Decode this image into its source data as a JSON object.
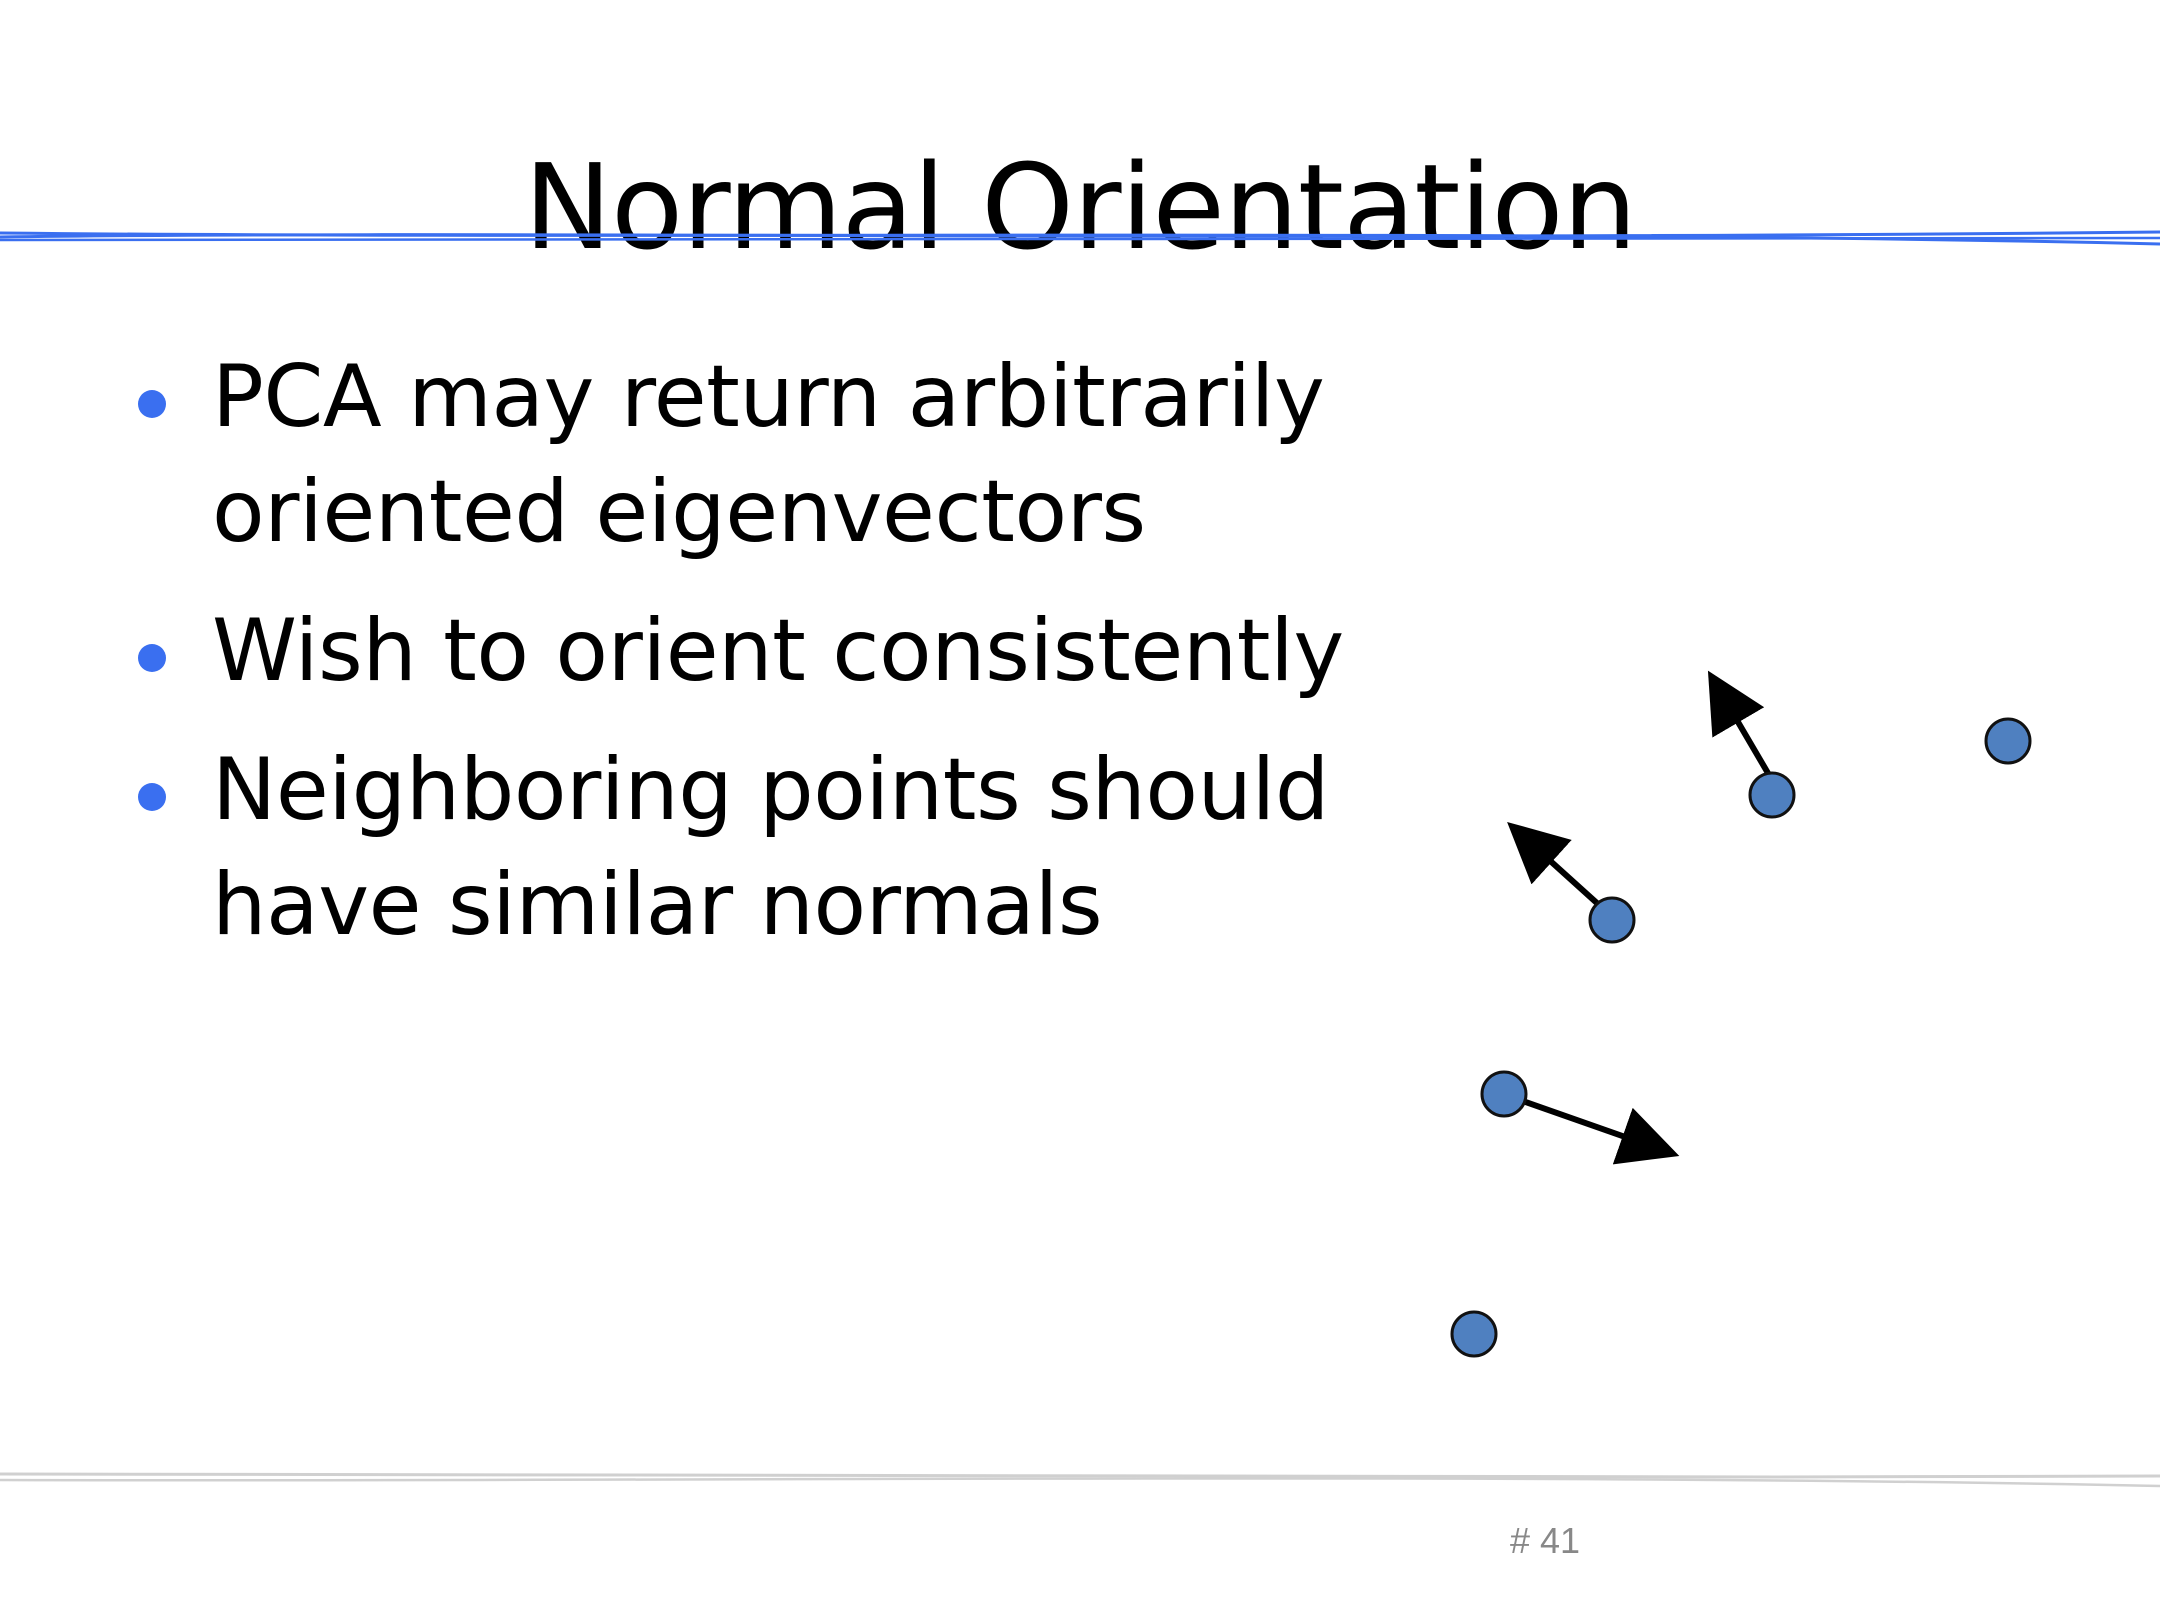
{
  "slide": {
    "title": "Normal Orientation",
    "bullets": [
      {
        "lines": [
          "PCA may return arbitrarily",
          "oriented eigenvectors"
        ]
      },
      {
        "lines": [
          "Wish to orient consistently"
        ]
      },
      {
        "lines": [
          "Neighboring points should",
          "have similar normals"
        ]
      }
    ],
    "number": "# 41"
  },
  "colors": {
    "accent_rule": "#3a6ff0",
    "bullet": "#3a6ff0",
    "footer_rule": "#d0d0d0",
    "point_fill": "#4f80c0",
    "point_stroke": "#111111",
    "arrow": "#000000"
  },
  "diagram": {
    "points": [
      {
        "id": "p1",
        "has_normal": true
      },
      {
        "id": "p2",
        "has_normal": false
      },
      {
        "id": "p3",
        "has_normal": true
      },
      {
        "id": "p4",
        "has_normal": true
      },
      {
        "id": "p5",
        "has_normal": false
      }
    ]
  }
}
